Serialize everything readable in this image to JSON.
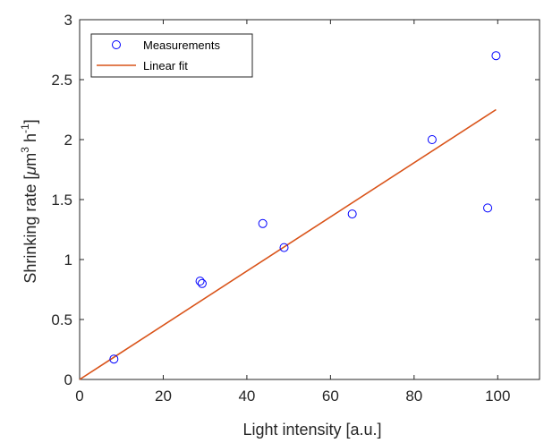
{
  "chart_data": {
    "type": "scatter",
    "xlabel": "Light intensity [a.u.]",
    "ylabel": {
      "prefix": "Shrinking rate [",
      "mu": "μ",
      "unit1": "m",
      "exp1": "3",
      "unit2": " h",
      "exp2": "-1",
      "suffix": "]"
    },
    "xlim": [
      0,
      110
    ],
    "ylim": [
      0,
      3
    ],
    "xticks": [
      0,
      20,
      40,
      60,
      80,
      100
    ],
    "yticks": [
      0,
      0.5,
      1,
      1.5,
      2,
      2.5,
      3
    ],
    "xtick_labels": [
      "0",
      "20",
      "40",
      "60",
      "80",
      "100"
    ],
    "ytick_labels": [
      "0",
      "0.5",
      "1",
      "1.5",
      "2",
      "2.5",
      "3"
    ],
    "grid": false,
    "legend_position": "top-left",
    "series": [
      {
        "name": "Measurements",
        "kind": "markers",
        "color": "#0000ff",
        "x": [
          8.2,
          28.8,
          29.3,
          43.8,
          48.9,
          65.2,
          84.3,
          97.6,
          99.6
        ],
        "y": [
          0.17,
          0.82,
          0.8,
          1.3,
          1.1,
          1.38,
          2.0,
          1.43,
          2.7
        ]
      },
      {
        "name": "Linear fit",
        "kind": "line",
        "color": "#d95319",
        "x": [
          0,
          99.6
        ],
        "y": [
          0,
          2.25
        ]
      }
    ]
  }
}
